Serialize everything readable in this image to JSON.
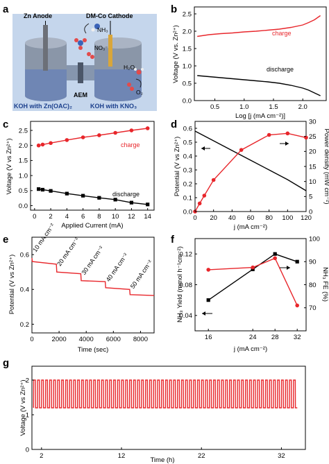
{
  "panels": {
    "a": {
      "letter": "a",
      "zn_anode": "Zn Anode",
      "cathode": "DM-Co Cathode",
      "nh3": "NH₃",
      "no3": "NO₃⁻",
      "h2o": "H₂O",
      "o2": "O₂",
      "aem": "AEM",
      "electrolyte_left": "KOH with Zn(OAC)₂",
      "electrolyte_right": "KOH with KNO₃",
      "colors": {
        "bg": "#c5d6ec",
        "tank": "#8a96a8",
        "liquid": "#6f86b4",
        "electrode": "#d9a63a"
      }
    },
    "b": {
      "letter": "b",
      "ylabel": "Voltage (V vs. Zn²⁺)",
      "xlabel": "Log [j (mA cm⁻²)]",
      "xticks": [
        "0.5",
        "1.0",
        "1.5",
        "2.0"
      ],
      "yticks": [
        "0.0",
        "0.5",
        "1.0",
        "1.5",
        "2.0",
        "2.5"
      ],
      "label_charge": "charge",
      "label_discharge": "discharge"
    },
    "c": {
      "letter": "c",
      "ylabel": "Voltage (V vs Zn²⁺)",
      "xlabel": "Applied Current (mA)",
      "xticks": [
        "0",
        "2",
        "4",
        "6",
        "8",
        "10",
        "12",
        "14"
      ],
      "yticks": [
        "0.0",
        "0.5",
        "1.0",
        "1.5",
        "2.0",
        "2.5"
      ],
      "label_charge": "charge",
      "label_discharge": "discharge"
    },
    "d": {
      "letter": "d",
      "ylabel_left": "Potential (V vs Zn²⁺)",
      "ylabel_right": "Power density (mW cm⁻²)",
      "xlabel": "j (mA cm⁻²)",
      "xticks": [
        "0",
        "20",
        "40",
        "60",
        "80",
        "100",
        "120"
      ],
      "yticks_left": [
        "0.0",
        "0.1",
        "0.2",
        "0.3",
        "0.4",
        "0.5",
        "0.6"
      ],
      "yticks_right": [
        "0",
        "5",
        "10",
        "15",
        "20",
        "25",
        "30"
      ]
    },
    "e": {
      "letter": "e",
      "ylabel": "Potential (V vs Zn²⁺)",
      "xlabel": "Time (sec)",
      "xticks": [
        "0",
        "2000",
        "4000",
        "6000",
        "8000"
      ],
      "yticks": [
        "0.2",
        "0.4",
        "0.6"
      ],
      "step_labels": [
        "10 mA cm⁻²",
        "20 mA cm⁻²",
        "30 mA cm⁻²",
        "40 mA cm⁻²",
        "50 mA cm⁻²"
      ]
    },
    "f": {
      "letter": "f",
      "ylabel_left": "NH₃ Yield (mmol h⁻¹cm⁻²)",
      "ylabel_right": "NH₃ FE (%)",
      "xlabel": "j (mA cm⁻²)",
      "xticks": [
        "16",
        "24",
        "28",
        "32"
      ],
      "yticks_left": [
        "0.04",
        "0.08",
        "0.12"
      ],
      "yticks_right": [
        "70",
        "80",
        "90",
        "100"
      ]
    },
    "g": {
      "letter": "g",
      "ylabel": "Voltage (V vs Zn²⁺)",
      "xlabel": "Time (h)",
      "xticks": [
        "2",
        "12",
        "22",
        "32"
      ],
      "yticks": [
        "0",
        "1",
        "2"
      ]
    }
  },
  "chart_data": [
    {
      "panel": "b",
      "type": "line",
      "xlabel": "Log [j (mA cm⁻²)]",
      "ylabel": "Voltage (V vs. Zn²⁺)",
      "xlim": [
        0.15,
        2.4
      ],
      "ylim": [
        0,
        2.7
      ],
      "grid": false,
      "series": [
        {
          "name": "charge",
          "color": "#e8262b",
          "x": [
            0.2,
            0.4,
            0.6,
            0.8,
            1.0,
            1.2,
            1.4,
            1.6,
            1.8,
            2.0,
            2.1,
            2.2,
            2.3
          ],
          "y": [
            1.85,
            1.9,
            1.93,
            1.95,
            1.98,
            2.0,
            2.03,
            2.06,
            2.11,
            2.18,
            2.25,
            2.33,
            2.45
          ]
        },
        {
          "name": "discharge",
          "color": "#000000",
          "x": [
            0.2,
            0.4,
            0.6,
            0.8,
            1.0,
            1.2,
            1.4,
            1.6,
            1.8,
            2.0,
            2.1,
            2.2,
            2.3
          ],
          "y": [
            0.72,
            0.69,
            0.66,
            0.63,
            0.6,
            0.57,
            0.54,
            0.5,
            0.44,
            0.36,
            0.3,
            0.22,
            0.14
          ]
        }
      ]
    },
    {
      "panel": "c",
      "type": "line",
      "xlabel": "Applied Current (mA)",
      "ylabel": "Voltage (V vs Zn²⁺)",
      "xlim": [
        -0.5,
        14.8
      ],
      "ylim": [
        -0.15,
        2.8
      ],
      "grid": false,
      "series": [
        {
          "name": "charge",
          "color": "#e8262b",
          "marker": "circle",
          "x": [
            0.5,
            1,
            2,
            4,
            6,
            8,
            10,
            12,
            14
          ],
          "y": [
            2.0,
            2.03,
            2.08,
            2.18,
            2.27,
            2.34,
            2.42,
            2.5,
            2.57
          ]
        },
        {
          "name": "discharge",
          "color": "#000000",
          "marker": "square",
          "x": [
            0.5,
            1,
            2,
            4,
            6,
            8,
            10,
            12,
            14
          ],
          "y": [
            0.55,
            0.53,
            0.49,
            0.4,
            0.33,
            0.26,
            0.2,
            0.1,
            0.04
          ]
        }
      ]
    },
    {
      "panel": "d",
      "type": "line",
      "xlabel": "j (mA cm⁻²)",
      "ylabel": "Potential (V vs Zn²⁺)",
      "ylabel_right": "Power density (mW cm⁻²)",
      "xlim": [
        0,
        120
      ],
      "ylim": [
        0,
        0.65
      ],
      "ylim_right": [
        0,
        30
      ],
      "grid": false,
      "series": [
        {
          "name": "Potential",
          "color": "#000000",
          "axis": "left",
          "x": [
            0,
            20,
            40,
            60,
            80,
            100,
            120
          ],
          "y": [
            0.58,
            0.51,
            0.44,
            0.37,
            0.3,
            0.23,
            0.15
          ]
        },
        {
          "name": "Power density",
          "color": "#e8262b",
          "axis": "right",
          "marker": "circle",
          "x": [
            0,
            5,
            10,
            20,
            50,
            80,
            100,
            120
          ],
          "y": [
            0,
            2.7,
            5.3,
            10.5,
            20.5,
            25.5,
            26.0,
            24.6
          ]
        }
      ]
    },
    {
      "panel": "e",
      "type": "line",
      "xlabel": "Time (sec)",
      "ylabel": "Potential (V vs Zn²⁺)",
      "xlim": [
        0,
        9000
      ],
      "ylim": [
        0.15,
        0.7
      ],
      "grid": false,
      "series": [
        {
          "name": "",
          "color": "#e8262b",
          "x": [
            0,
            30,
            1800,
            1830,
            3600,
            3630,
            5400,
            5430,
            7200,
            7230,
            9000
          ],
          "y": [
            0.58,
            0.56,
            0.545,
            0.5,
            0.49,
            0.45,
            0.445,
            0.41,
            0.4,
            0.37,
            0.365
          ]
        }
      ]
    },
    {
      "panel": "f",
      "type": "line",
      "xlabel": "j (mA cm⁻²)",
      "ylabel": "NH₃ Yield (mmol h⁻¹cm⁻²)",
      "ylabel_right": "NH₃ FE (%)",
      "ylim": [
        0.02,
        0.14
      ],
      "ylim_right": [
        60,
        100
      ],
      "grid": false,
      "categories": [
        "16",
        "24",
        "28",
        "32"
      ],
      "series": [
        {
          "name": "NH₃ Yield",
          "color": "#000000",
          "axis": "left",
          "marker": "square",
          "x": [
            16,
            24,
            28,
            32
          ],
          "y": [
            0.06,
            0.1,
            0.12,
            0.11
          ]
        },
        {
          "name": "NH₃ FE",
          "color": "#e8262b",
          "axis": "right",
          "marker": "circle",
          "x": [
            16,
            24,
            28,
            32
          ],
          "y": [
            86.5,
            87.5,
            91.5,
            71
          ]
        }
      ]
    },
    {
      "panel": "g",
      "type": "line",
      "xlabel": "Time (h)",
      "ylabel": "Voltage (V vs Zn²⁺)",
      "xlim": [
        0.8,
        35
      ],
      "ylim": [
        0,
        2.4
      ],
      "grid": false,
      "cycling": {
        "upper_V": 2.0,
        "lower_V": 1.2,
        "cycles": 66,
        "t_start_h": 1.0,
        "t_end_h": 34.0
      },
      "series": [
        {
          "name": "",
          "color": "#e8262b"
        }
      ]
    }
  ]
}
